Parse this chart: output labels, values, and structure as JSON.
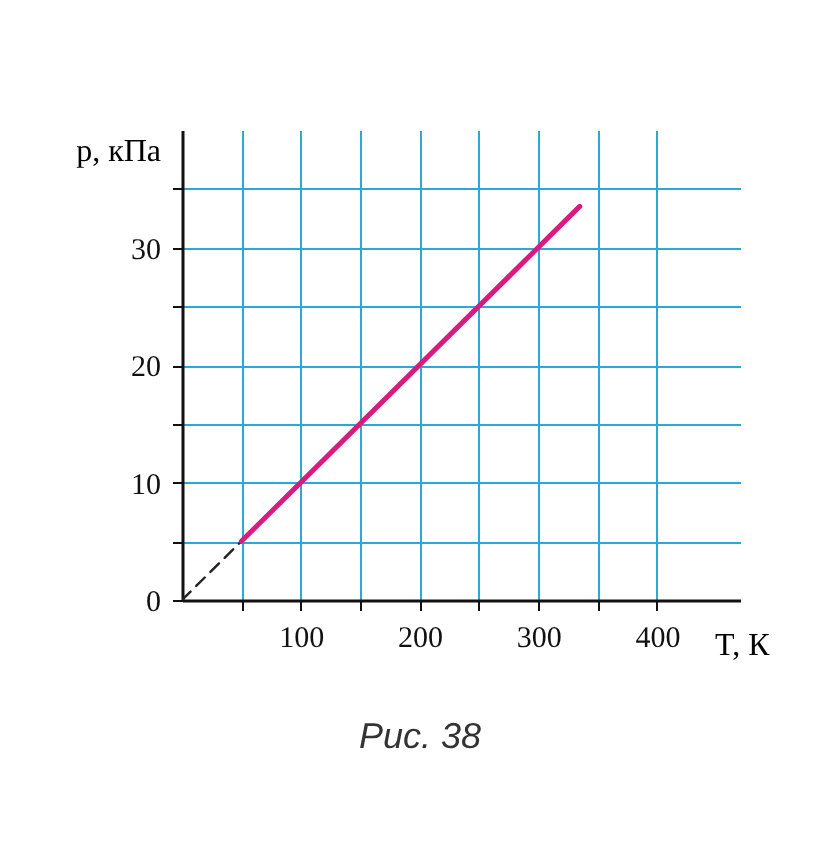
{
  "chart_data": {
    "type": "line",
    "xlabel": "T, К",
    "ylabel": "p, кПа",
    "annotations": [
      "Рис. 38"
    ],
    "series": [
      {
        "x": [
          0,
          50
        ],
        "values": [
          0,
          5
        ],
        "color": "#222222",
        "line_style": "dashed"
      },
      {
        "x": [
          50,
          335
        ],
        "values": [
          5,
          33.5
        ],
        "color": "#d81b7f",
        "line_style": "solid"
      }
    ],
    "xlim": [
      0,
      470
    ],
    "ylim": [
      0,
      40
    ],
    "xticks": [
      {
        "value": 50,
        "label": null
      },
      100,
      {
        "value": 150,
        "label": null
      },
      200,
      {
        "value": 250,
        "label": null
      },
      300,
      {
        "value": 350,
        "label": null
      },
      400
    ],
    "yticks": [
      0,
      {
        "value": 5,
        "label": null
      },
      10,
      {
        "value": 15,
        "label": null
      },
      20,
      {
        "value": 25,
        "label": null
      },
      30,
      {
        "value": 35,
        "label": null
      }
    ],
    "grid": true
  }
}
